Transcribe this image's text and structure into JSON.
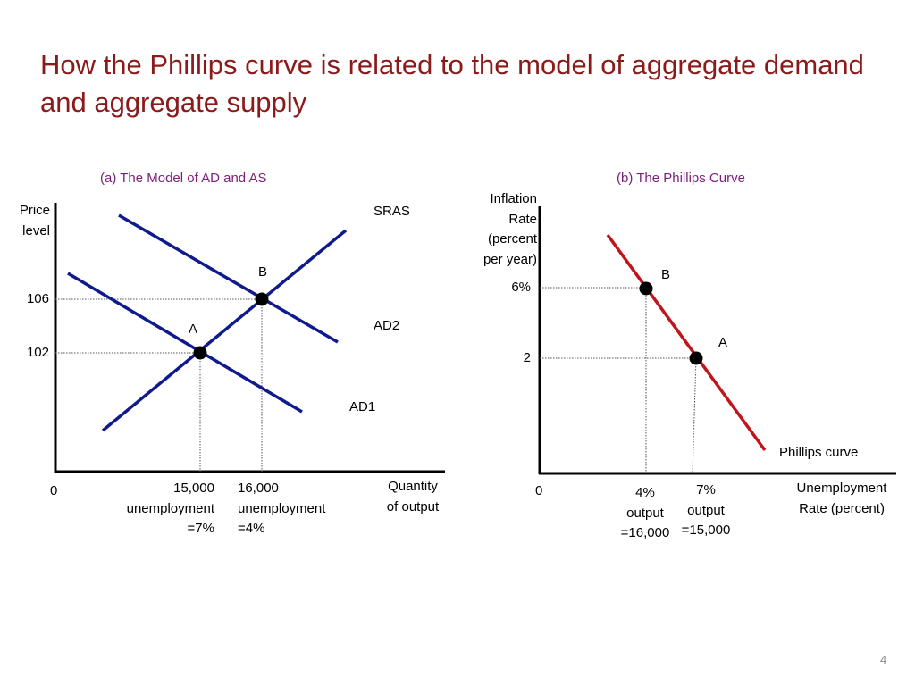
{
  "title": "How the Phillips curve is related to the model of aggregate demand and aggregate supply",
  "panel_a": {
    "title": "(a) The Model of AD and AS",
    "y_label": "Price\nlevel",
    "x_label": "Quantity\nof output",
    "origin": "0",
    "y_levels": [
      "106",
      "102"
    ],
    "x_levels": [
      "15,000\nunemployment\n=7%",
      "16,000\nunemployment\n=4%"
    ],
    "curves": [
      "SRAS",
      "AD2",
      "AD1"
    ],
    "points": [
      "B",
      "A"
    ]
  },
  "panel_b": {
    "title": "(b) The Phillips Curve",
    "y_label": "Inflation\nRate\n(percent\nper year)",
    "x_label": "Unemployment\nRate (percent)",
    "origin": "0",
    "y_levels": [
      "6%",
      "2"
    ],
    "x_levels": [
      "4%\noutput\n=16,000",
      "7%\noutput\n=15,000"
    ],
    "curve": "Phillips curve",
    "points": [
      "B",
      "A"
    ]
  },
  "page_number": "4"
}
